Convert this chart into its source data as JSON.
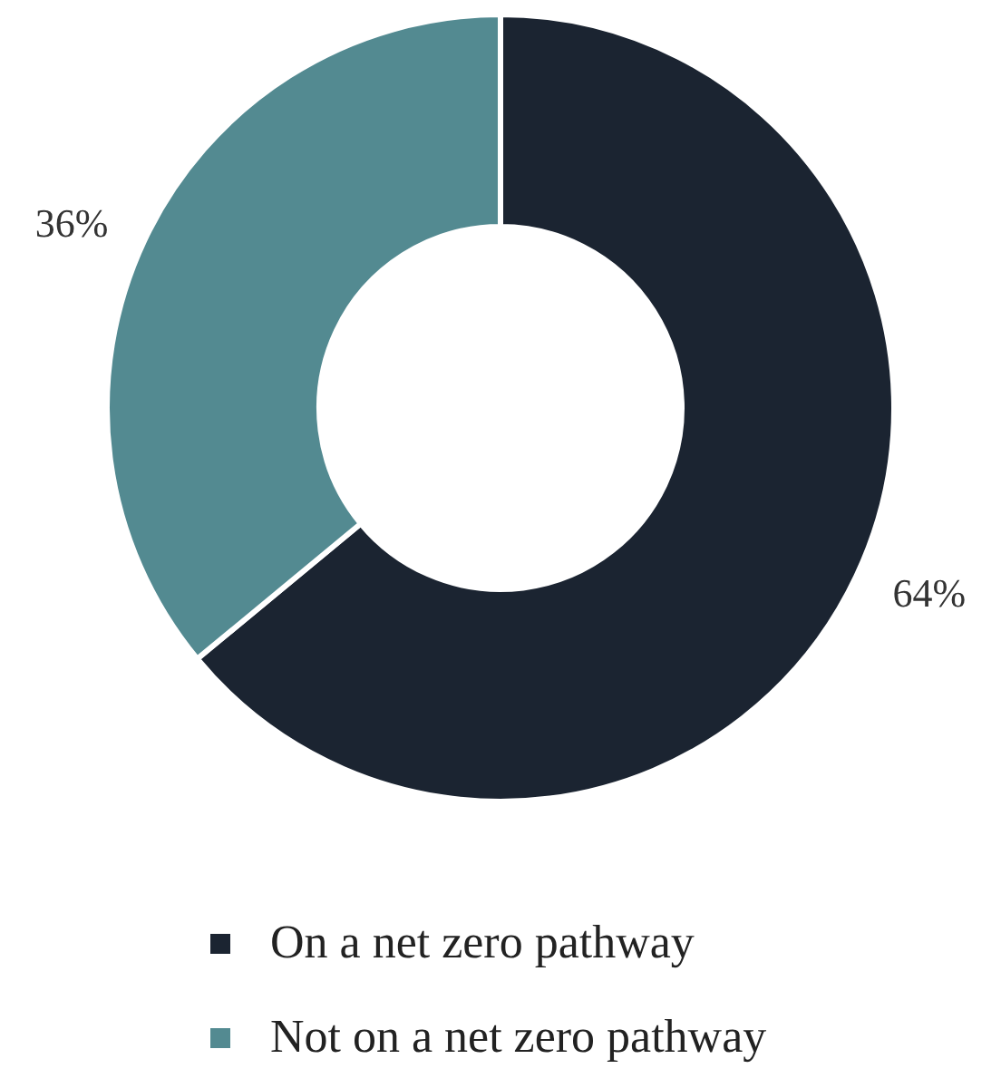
{
  "chart_data": {
    "type": "donut",
    "categories": [
      "On a net zero pathway",
      "Not on a net zero pathway"
    ],
    "values": [
      64,
      36
    ],
    "colors": [
      "#1b2431",
      "#538a91"
    ],
    "value_labels": [
      "64%",
      "36%"
    ],
    "legend": "bottom"
  }
}
